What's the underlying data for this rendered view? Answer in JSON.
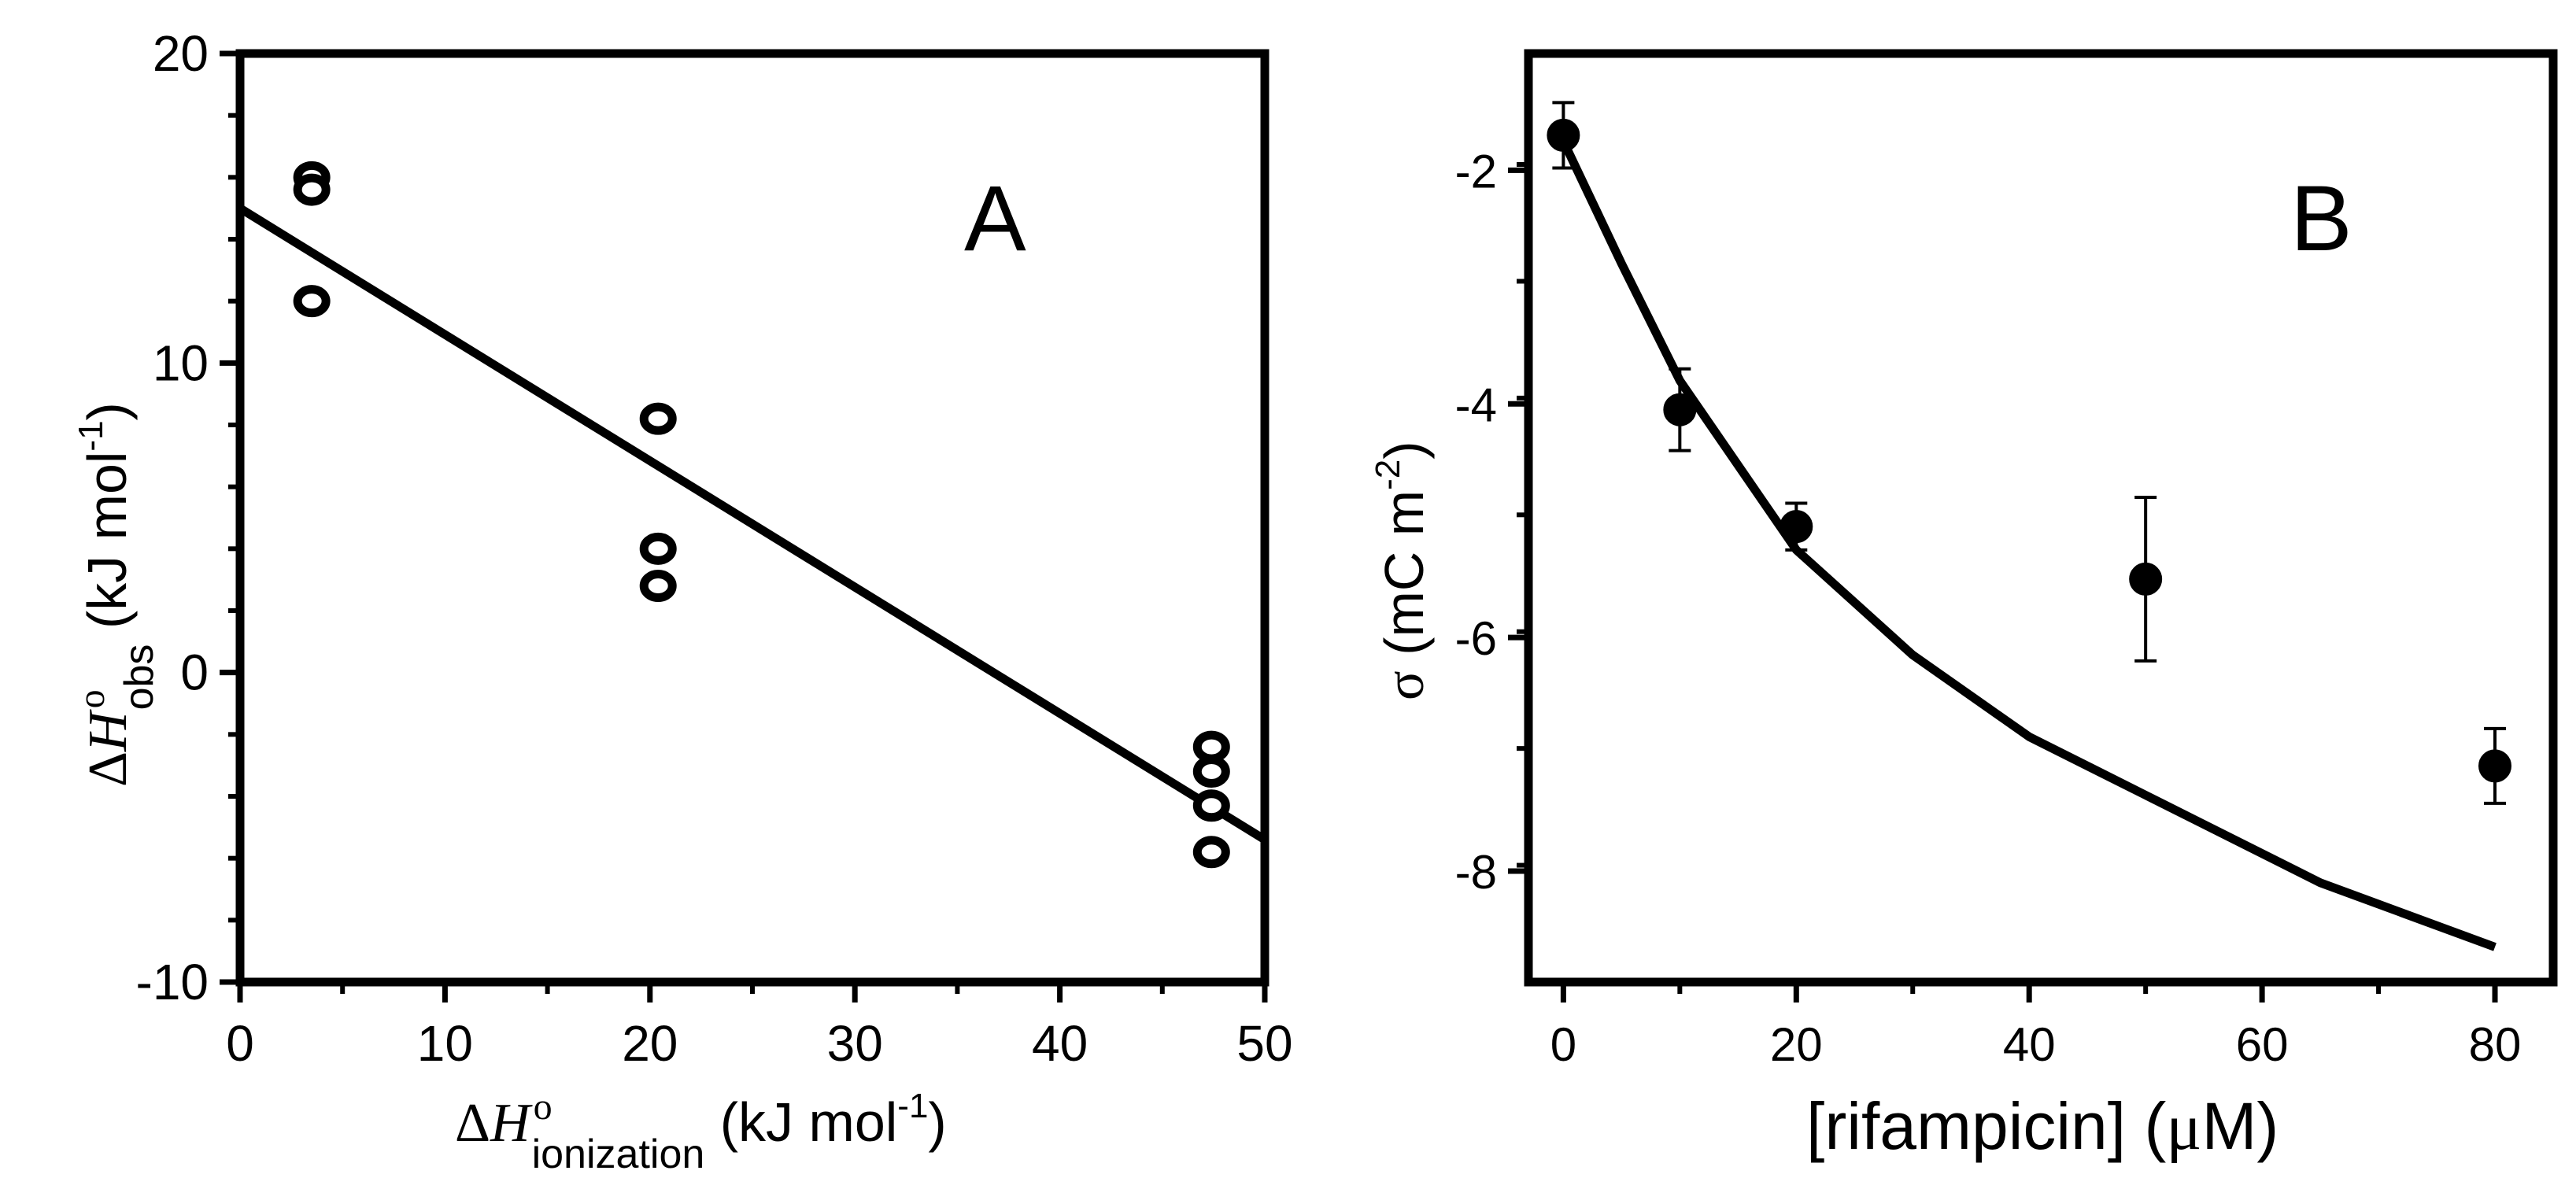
{
  "chart_data": [
    {
      "panel": "A",
      "type": "scatter",
      "panel_label": "A",
      "xlabel": {
        "delta": "Δ",
        "symbol": "H",
        "sup": "o",
        "sub": "ionization",
        "unit_pre": " (kJ mol",
        "unit_sup": "-1",
        "unit_post": ")"
      },
      "ylabel": {
        "delta": "Δ",
        "symbol": "H",
        "sup": "o",
        "sub": "obs",
        "unit_pre": " (kJ mol",
        "unit_sup": "-1",
        "unit_post": ")"
      },
      "xlim": [
        0,
        50
      ],
      "ylim": [
        -10,
        20
      ],
      "xticks": [
        0,
        10,
        20,
        30,
        40,
        50
      ],
      "xtick_labels": [
        "0",
        "10",
        "20",
        "30",
        "40",
        "50"
      ],
      "yticks": [
        -10,
        0,
        10,
        20
      ],
      "ytick_labels": [
        "-10",
        "0",
        "10",
        "20"
      ],
      "marker": "open-circle",
      "points": [
        {
          "x": 3.5,
          "y": 16.0
        },
        {
          "x": 3.5,
          "y": 15.6
        },
        {
          "x": 3.5,
          "y": 12.0
        },
        {
          "x": 20.4,
          "y": 8.2
        },
        {
          "x": 20.4,
          "y": 4.0
        },
        {
          "x": 20.4,
          "y": 2.8
        },
        {
          "x": 47.4,
          "y": -2.4
        },
        {
          "x": 47.4,
          "y": -3.2
        },
        {
          "x": 47.4,
          "y": -4.3
        },
        {
          "x": 47.4,
          "y": -5.8
        }
      ],
      "fit_line": {
        "x": [
          0,
          50
        ],
        "y": [
          15.0,
          -5.4
        ]
      }
    },
    {
      "panel": "B",
      "type": "scatter",
      "panel_label": "B",
      "xlabel": {
        "pre": "[rifampicin] (",
        "mu": "μ",
        "post": "M)"
      },
      "ylabel": {
        "sigma": "σ",
        "unit_pre": " (mC m",
        "unit_sup": "-2",
        "unit_post": ")"
      },
      "xlim": [
        -3,
        85
      ],
      "ylim": [
        -8.95,
        -1.0
      ],
      "xticks": [
        0,
        20,
        40,
        60,
        80
      ],
      "xtick_labels": [
        "0",
        "20",
        "40",
        "60",
        "80"
      ],
      "yticks": [
        -8,
        -6,
        -4,
        -2
      ],
      "ytick_labels": [
        "-8",
        "-6",
        "-4",
        "-2"
      ],
      "marker": "filled-circle",
      "points": [
        {
          "x": 0,
          "y": -1.7,
          "err": 0.28
        },
        {
          "x": 10,
          "y": -4.05,
          "err": 0.35
        },
        {
          "x": 20,
          "y": -5.05,
          "err": 0.2
        },
        {
          "x": 50,
          "y": -5.5,
          "err": 0.7
        },
        {
          "x": 80,
          "y": -7.1,
          "err": 0.32
        }
      ],
      "fit_line": {
        "x": [
          0,
          5,
          10,
          20,
          30,
          40,
          50,
          65,
          80
        ],
        "y": [
          -1.75,
          -2.8,
          -3.8,
          -5.25,
          -6.15,
          -6.85,
          -7.35,
          -8.1,
          -8.65
        ]
      }
    }
  ]
}
